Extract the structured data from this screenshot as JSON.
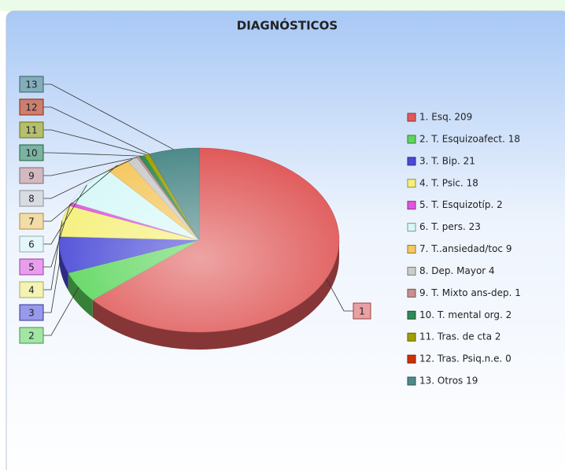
{
  "chart_data": {
    "type": "pie",
    "title": "DIAGNÓSTICOS",
    "categories": [
      "1. Esq. 209",
      "2. T. Esquizoafect. 18",
      "3. T. Bip. 21",
      "4. T. Psic. 18",
      "5. T. Esquizotíp. 2",
      "6. T. pers. 23",
      "7. T..ansiedad/toc 9",
      "8. Dep. Mayor 4",
      "9. T. Mixto ans-dep. 1",
      "10. T. mental org. 2",
      "11. Tras. de cta 2",
      "12. Tras. Psiq.n.e. 0",
      "13. Otros 19"
    ],
    "values": [
      209,
      18,
      21,
      18,
      2,
      23,
      9,
      4,
      1,
      2,
      2,
      0,
      19
    ],
    "labels": [
      "1",
      "2",
      "3",
      "4",
      "5",
      "6",
      "7",
      "8",
      "9",
      "10",
      "11",
      "12",
      "13"
    ],
    "colors": [
      "#e05a5a",
      "#5cd65c",
      "#4a4ad8",
      "#f5f07a",
      "#e055e0",
      "#d8f8f8",
      "#f5c860",
      "#cccccc",
      "#c99090",
      "#2e8b57",
      "#a0a000",
      "#cc3300",
      "#4e8a8a"
    ]
  }
}
